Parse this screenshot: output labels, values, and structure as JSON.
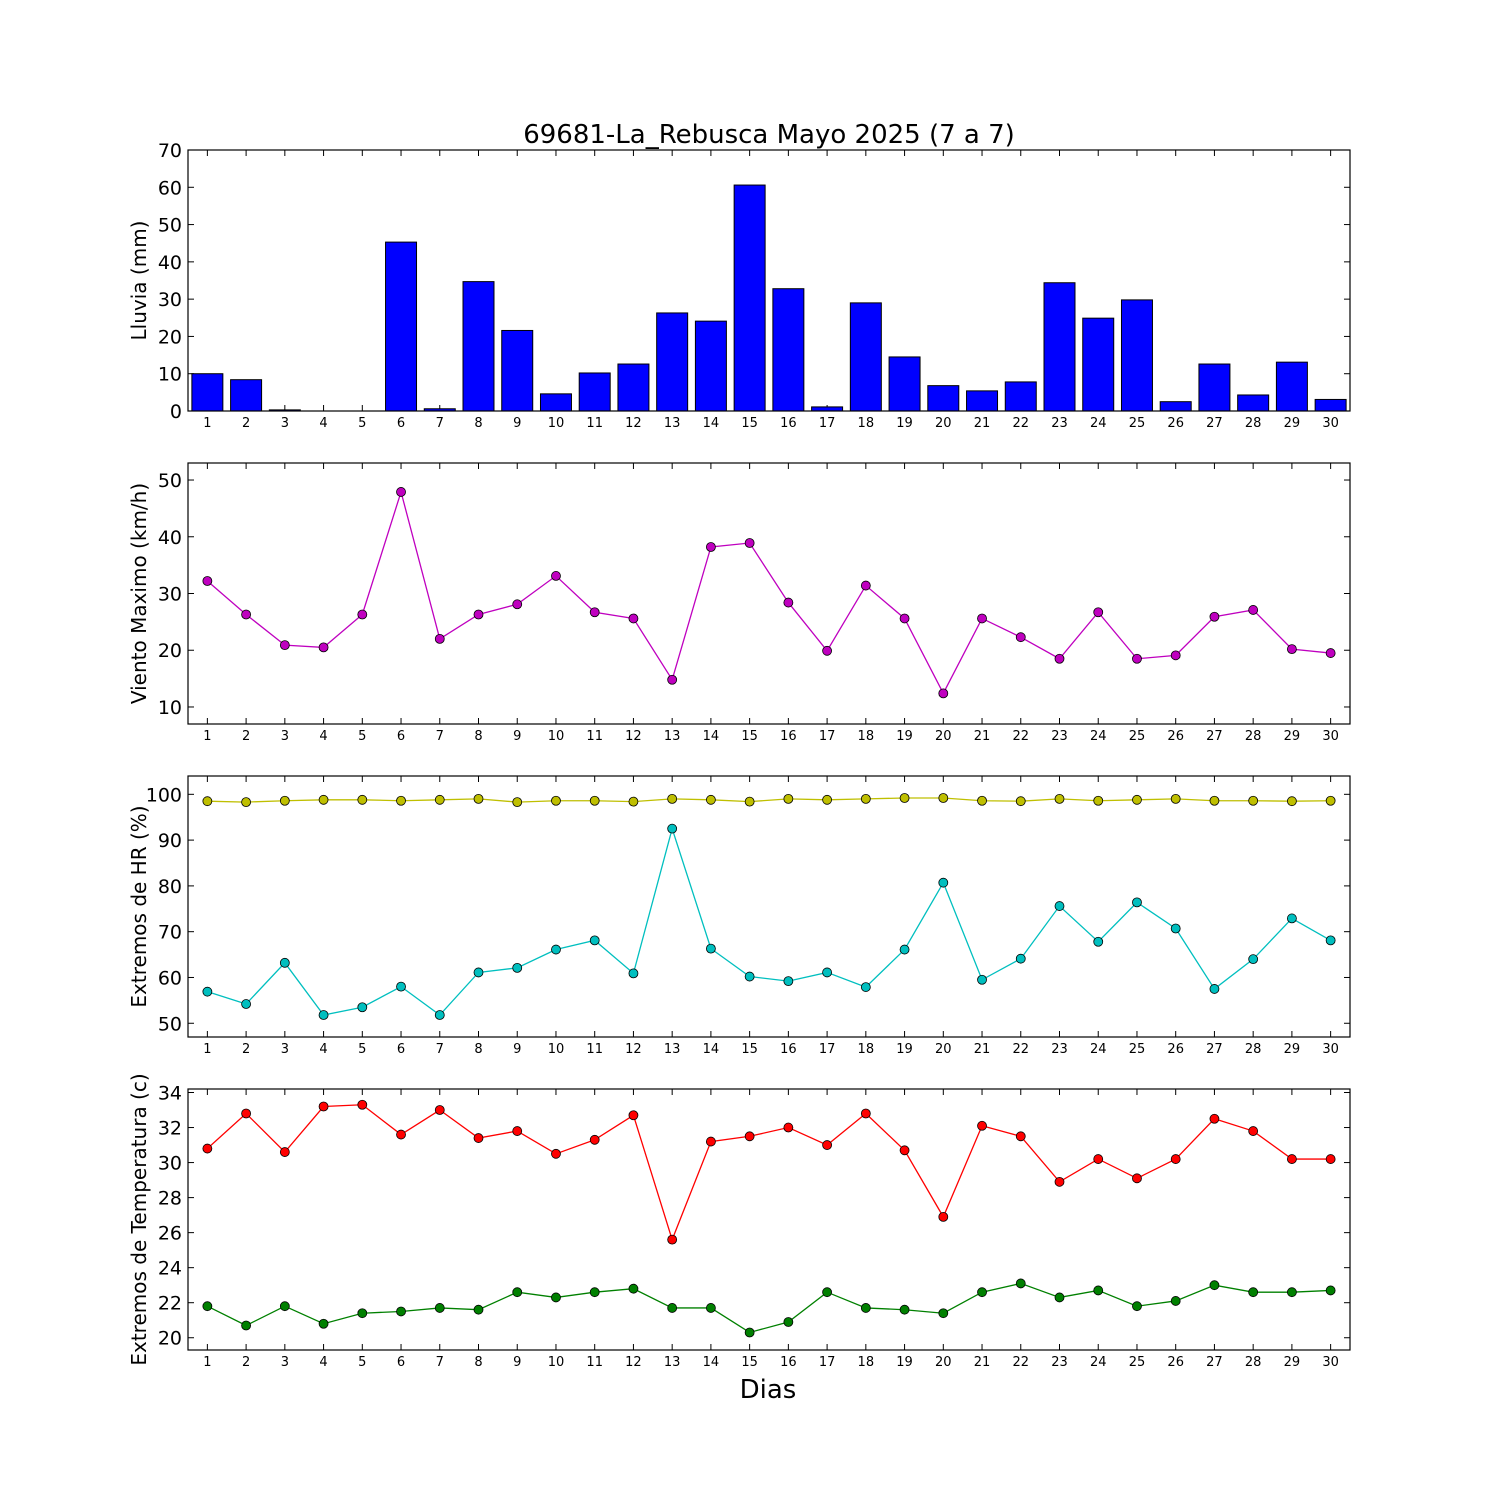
{
  "title": "69681-La_Rebusca Mayo 2025  (7 a 7)",
  "xlabel": "Dias",
  "chart_data": [
    {
      "type": "bar",
      "ylabel": "Lluvia (mm)",
      "ylim": [
        0,
        70
      ],
      "yticks": [
        0,
        10,
        20,
        30,
        40,
        50,
        60,
        70
      ],
      "categories": [
        "1",
        "2",
        "3",
        "4",
        "5",
        "6",
        "7",
        "8",
        "9",
        "10",
        "11",
        "12",
        "13",
        "14",
        "15",
        "16",
        "17",
        "18",
        "19",
        "20",
        "21",
        "22",
        "23",
        "24",
        "25",
        "26",
        "27",
        "28",
        "29",
        "30"
      ],
      "series": [
        {
          "color": "#0000ff",
          "values": [
            10,
            8.4,
            0.3,
            0,
            0,
            45.3,
            0.6,
            34.7,
            21.6,
            4.6,
            10.2,
            12.6,
            26.3,
            24.1,
            60.6,
            32.8,
            1.1,
            29,
            14.5,
            6.8,
            5.4,
            7.8,
            34.4,
            24.9,
            29.8,
            2.5,
            12.6,
            4.3,
            13.1,
            3.1
          ]
        }
      ]
    },
    {
      "type": "line",
      "ylabel": "Viento Maximo (km/h)",
      "ylim": [
        7,
        53
      ],
      "yticks": [
        10,
        20,
        30,
        40,
        50
      ],
      "categories": [
        "1",
        "2",
        "3",
        "4",
        "5",
        "6",
        "7",
        "8",
        "9",
        "10",
        "11",
        "12",
        "13",
        "14",
        "15",
        "16",
        "17",
        "18",
        "19",
        "20",
        "21",
        "22",
        "23",
        "24",
        "25",
        "26",
        "27",
        "28",
        "29",
        "30"
      ],
      "series": [
        {
          "color": "#bf00bf",
          "values": [
            32.2,
            26.3,
            20.9,
            20.5,
            26.3,
            47.9,
            22,
            26.3,
            28.1,
            33.1,
            26.7,
            25.6,
            14.8,
            38.2,
            38.9,
            28.4,
            19.9,
            31.4,
            25.6,
            12.4,
            25.6,
            22.3,
            18.5,
            26.7,
            18.5,
            19.1,
            25.9,
            27.1,
            20.2,
            19.5
          ]
        }
      ]
    },
    {
      "type": "line",
      "ylabel": "Extremos de HR (%)",
      "ylim": [
        47,
        104
      ],
      "yticks": [
        50,
        60,
        70,
        80,
        90,
        100
      ],
      "categories": [
        "1",
        "2",
        "3",
        "4",
        "5",
        "6",
        "7",
        "8",
        "9",
        "10",
        "11",
        "12",
        "13",
        "14",
        "15",
        "16",
        "17",
        "18",
        "19",
        "20",
        "21",
        "22",
        "23",
        "24",
        "25",
        "26",
        "27",
        "28",
        "29",
        "30"
      ],
      "series": [
        {
          "color": "#bfbf00",
          "values": [
            98.5,
            98.3,
            98.6,
            98.8,
            98.8,
            98.6,
            98.8,
            99,
            98.3,
            98.6,
            98.6,
            98.4,
            99,
            98.8,
            98.4,
            99,
            98.8,
            99,
            99.2,
            99.2,
            98.6,
            98.5,
            99,
            98.6,
            98.8,
            99,
            98.6,
            98.6,
            98.5,
            98.6
          ]
        },
        {
          "color": "#00bfbf",
          "values": [
            56.9,
            54.2,
            63.2,
            51.8,
            53.5,
            58,
            51.8,
            61.1,
            62.1,
            66.1,
            68.1,
            60.9,
            92.5,
            66.3,
            60.2,
            59.2,
            61.1,
            57.9,
            66.1,
            80.7,
            59.5,
            64.1,
            75.6,
            67.8,
            76.4,
            70.7,
            57.5,
            64,
            72.9,
            68.1
          ]
        }
      ]
    },
    {
      "type": "line",
      "ylabel": "Extremos de Temperatura (c)",
      "ylim": [
        19.3,
        34.2
      ],
      "yticks": [
        20,
        22,
        24,
        26,
        28,
        30,
        32,
        34
      ],
      "categories": [
        "1",
        "2",
        "3",
        "4",
        "5",
        "6",
        "7",
        "8",
        "9",
        "10",
        "11",
        "12",
        "13",
        "14",
        "15",
        "16",
        "17",
        "18",
        "19",
        "20",
        "21",
        "22",
        "23",
        "24",
        "25",
        "26",
        "27",
        "28",
        "29",
        "30"
      ],
      "series": [
        {
          "color": "#ff0000",
          "values": [
            30.8,
            32.8,
            30.6,
            33.2,
            33.3,
            31.6,
            33,
            31.4,
            31.8,
            30.5,
            31.3,
            32.7,
            25.6,
            31.2,
            31.5,
            32,
            31,
            32.8,
            30.7,
            26.9,
            32.1,
            31.5,
            28.9,
            30.2,
            29.1,
            30.2,
            32.5,
            31.8,
            30.2,
            30.2
          ]
        },
        {
          "color": "#008000",
          "values": [
            21.8,
            20.7,
            21.8,
            20.8,
            21.4,
            21.5,
            21.7,
            21.6,
            22.6,
            22.3,
            22.6,
            22.8,
            21.7,
            21.7,
            20.3,
            20.9,
            22.6,
            21.7,
            21.6,
            21.4,
            22.6,
            23.1,
            22.3,
            22.7,
            21.8,
            22.1,
            23,
            22.6,
            22.6,
            22.7
          ]
        }
      ]
    }
  ]
}
